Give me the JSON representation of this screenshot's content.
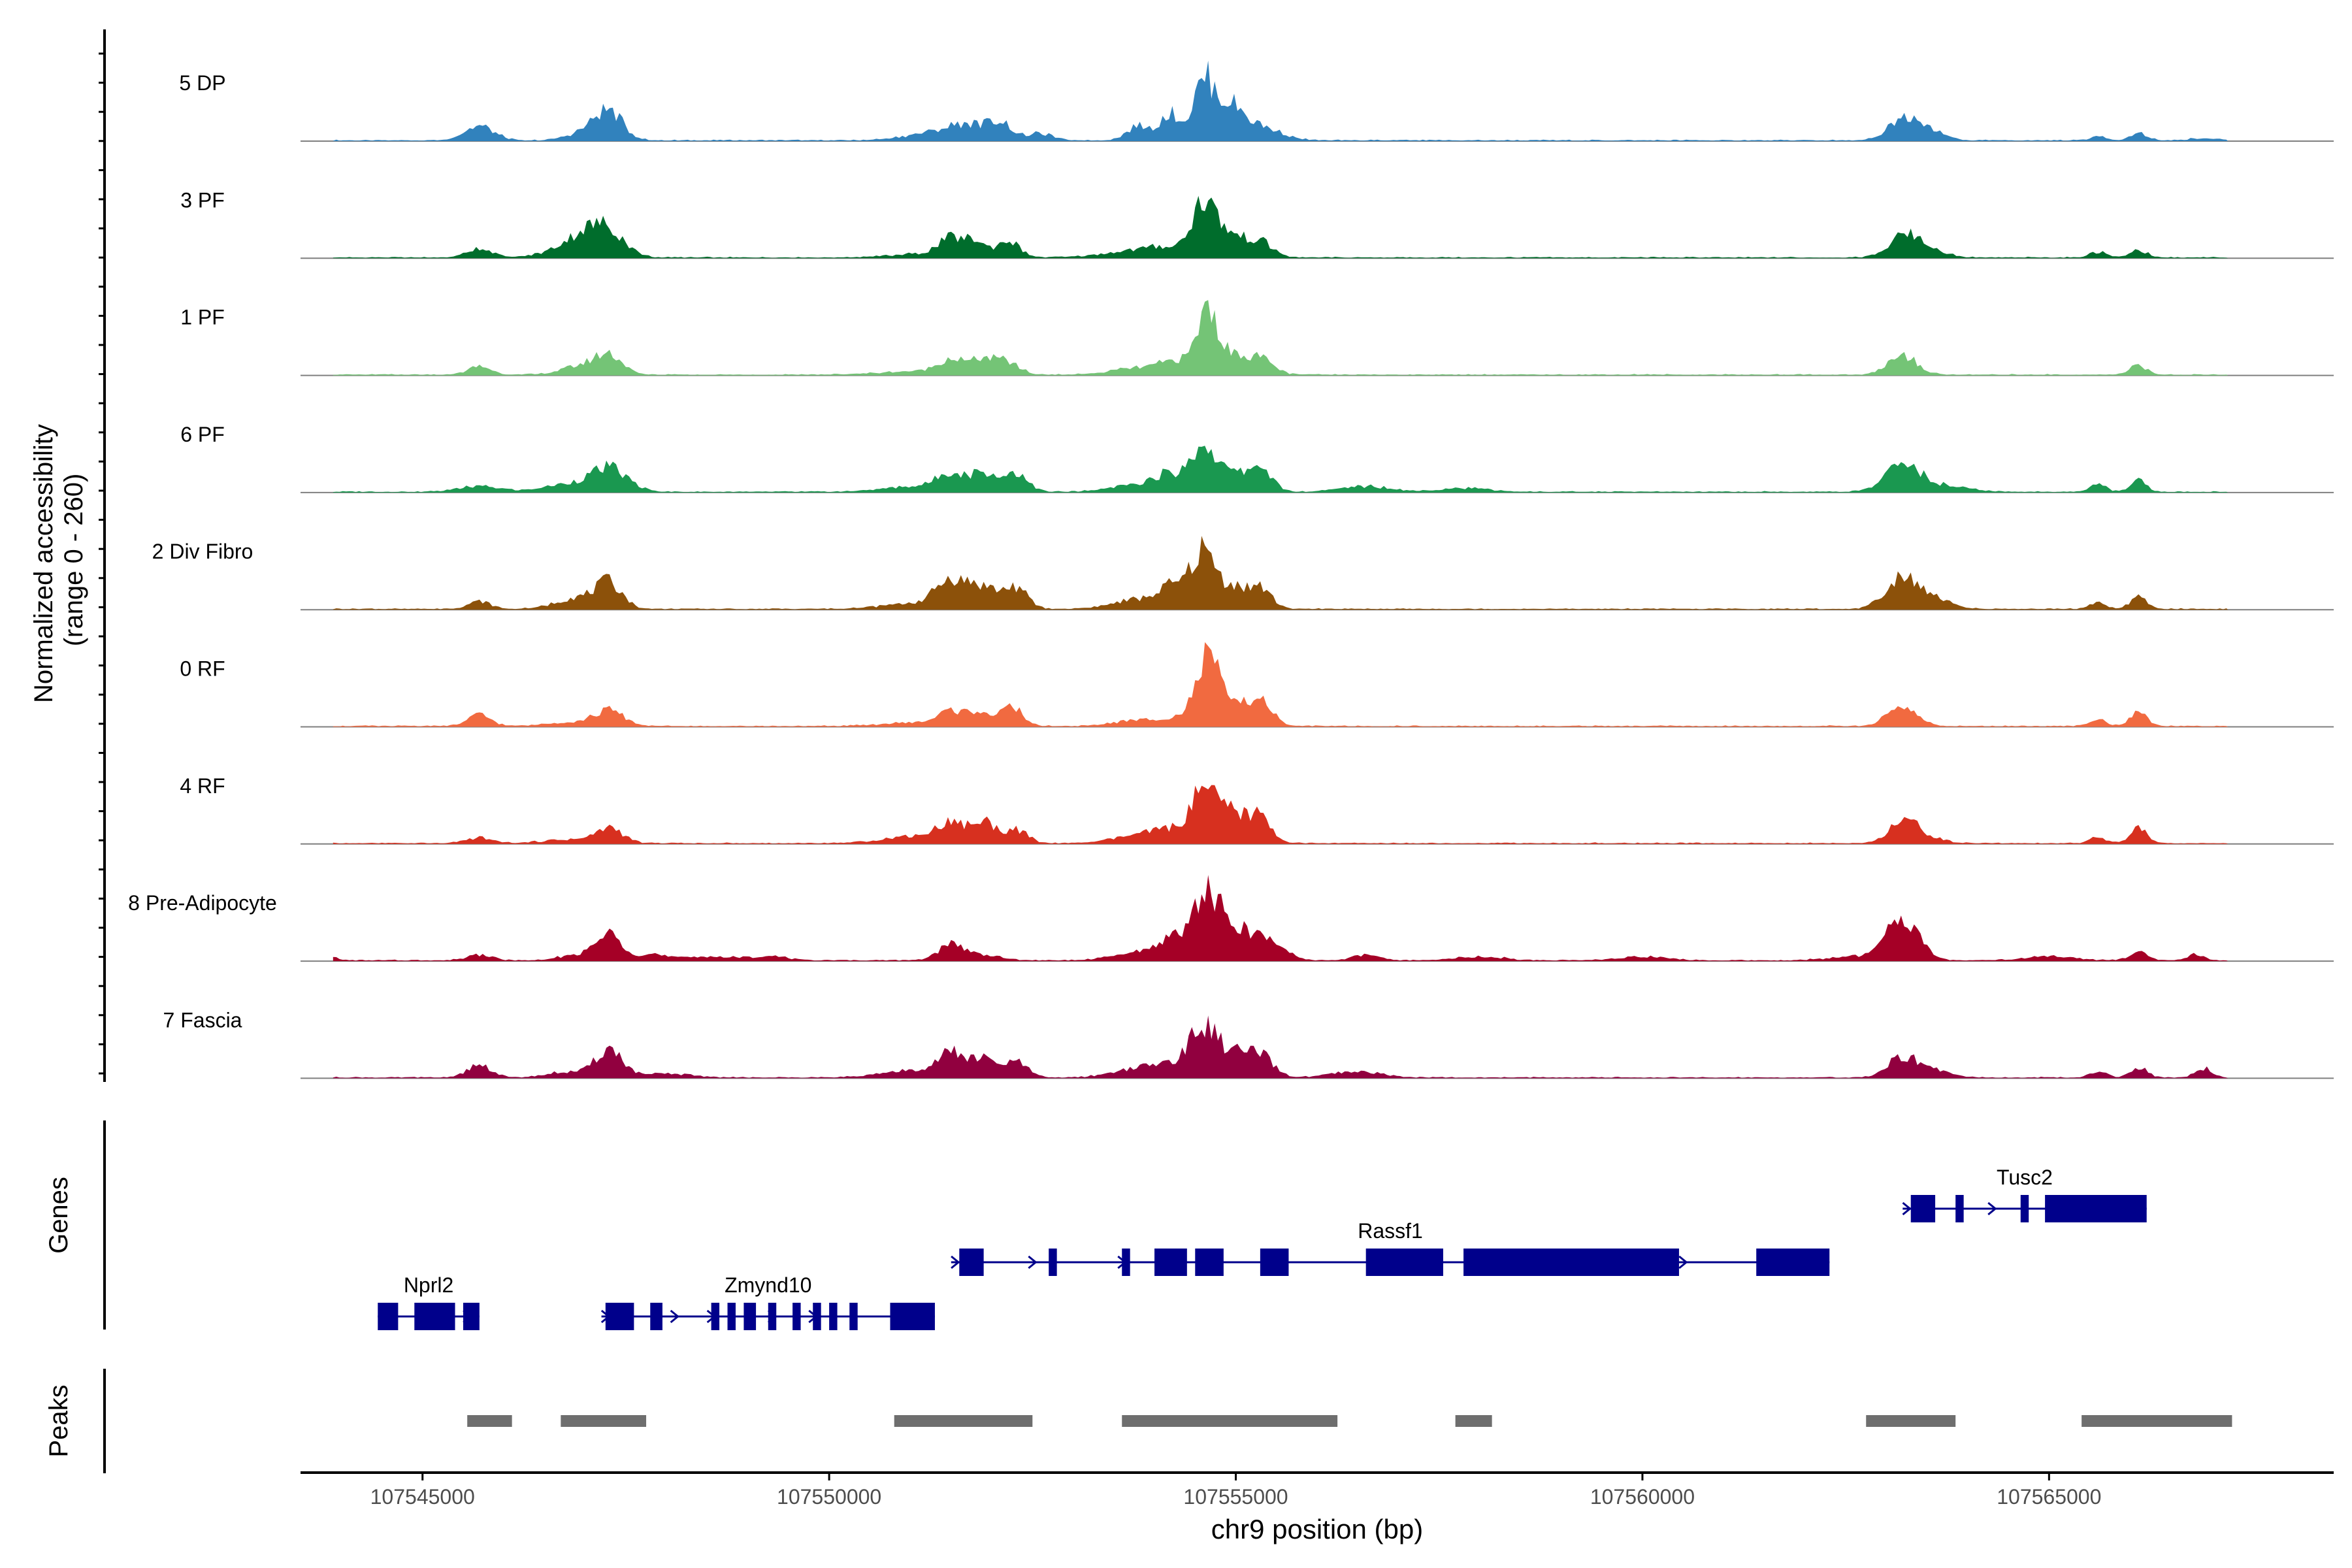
{
  "chart_data": {
    "type": "area",
    "title": "",
    "xlabel": "chr9 position (bp)",
    "ylabel": "Normalized accessibility (range 0 - 260)",
    "ylabel_lines": [
      "Normalized accessibility",
      "(range 0 - 260)"
    ],
    "y_range": [
      0,
      260
    ],
    "xlim": [
      107543500,
      107568500
    ],
    "x_ticks": [
      107545000,
      107550000,
      107555000,
      107560000,
      107565000
    ],
    "x_tick_labels": [
      "107545000",
      "107550000",
      "107555000",
      "107560000",
      "107565000"
    ],
    "panel_labels": {
      "genes": "Genes",
      "peaks": "Peaks"
    },
    "tracks": [
      {
        "name": "5 DP",
        "color": "#3182BD",
        "peaks": [
          [
            107545700,
            38,
            180
          ],
          [
            107547300,
            60,
            160
          ],
          [
            107547100,
            30,
            250
          ],
          [
            107551300,
            20,
            350
          ],
          [
            107551700,
            34,
            220
          ],
          [
            107552100,
            45,
            150
          ],
          [
            107552600,
            18,
            150
          ],
          [
            107553800,
            38,
            140
          ],
          [
            107554200,
            72,
            130
          ],
          [
            107554600,
            145,
            120
          ],
          [
            107554900,
            90,
            180
          ],
          [
            107555300,
            35,
            250
          ],
          [
            107563200,
            55,
            180
          ],
          [
            107563500,
            30,
            180
          ],
          [
            107565600,
            10,
            100
          ],
          [
            107566100,
            20,
            100
          ],
          [
            107566900,
            5,
            200
          ]
        ]
      },
      {
        "name": "3 PF",
        "color": "#006D2C",
        "peaks": [
          [
            107545700,
            25,
            150
          ],
          [
            107546700,
            10,
            300
          ],
          [
            107547000,
            55,
            250
          ],
          [
            107547300,
            55,
            200
          ],
          [
            107551200,
            10,
            400
          ],
          [
            107551500,
            45,
            150
          ],
          [
            107551800,
            38,
            120
          ],
          [
            107552200,
            45,
            140
          ],
          [
            107553800,
            18,
            400
          ],
          [
            107554200,
            18,
            250
          ],
          [
            107554600,
            130,
            140
          ],
          [
            107554900,
            60,
            200
          ],
          [
            107555300,
            38,
            160
          ],
          [
            107563200,
            55,
            180
          ],
          [
            107563500,
            25,
            200
          ],
          [
            107565600,
            15,
            100
          ],
          [
            107566100,
            20,
            100
          ]
        ]
      },
      {
        "name": "1 PF",
        "color": "#74C476",
        "peaks": [
          [
            107545700,
            22,
            140
          ],
          [
            107547000,
            25,
            250
          ],
          [
            107547300,
            45,
            160
          ],
          [
            107551200,
            10,
            500
          ],
          [
            107551500,
            35,
            150
          ],
          [
            107551900,
            38,
            150
          ],
          [
            107552200,
            30,
            140
          ],
          [
            107553800,
            18,
            300
          ],
          [
            107554300,
            35,
            200
          ],
          [
            107554650,
            160,
            120
          ],
          [
            107554950,
            50,
            180
          ],
          [
            107555300,
            40,
            160
          ],
          [
            107563200,
            50,
            180
          ],
          [
            107566100,
            25,
            100
          ]
        ]
      },
      {
        "name": "6 PF",
        "color": "#1A9850",
        "peaks": [
          [
            107545700,
            15,
            250
          ],
          [
            107546800,
            20,
            300
          ],
          [
            107547300,
            60,
            220
          ],
          [
            107551100,
            15,
            400
          ],
          [
            107551500,
            45,
            160
          ],
          [
            107551900,
            50,
            150
          ],
          [
            107552300,
            52,
            140
          ],
          [
            107553800,
            20,
            300
          ],
          [
            107554200,
            40,
            180
          ],
          [
            107554600,
            118,
            150
          ],
          [
            107554950,
            45,
            180
          ],
          [
            107555300,
            65,
            140
          ],
          [
            107556600,
            15,
            300
          ],
          [
            107557800,
            10,
            300
          ],
          [
            107563200,
            70,
            220
          ],
          [
            107563700,
            15,
            300
          ],
          [
            107565600,
            20,
            100
          ],
          [
            107566100,
            30,
            100
          ]
        ]
      },
      {
        "name": "2 Div Fibro",
        "color": "#8C510A",
        "peaks": [
          [
            107545700,
            20,
            140
          ],
          [
            107546900,
            30,
            250
          ],
          [
            107547300,
            65,
            160
          ],
          [
            107551100,
            15,
            400
          ],
          [
            107551500,
            70,
            180
          ],
          [
            107551900,
            55,
            180
          ],
          [
            107552300,
            55,
            140
          ],
          [
            107553800,
            25,
            300
          ],
          [
            107554250,
            55,
            180
          ],
          [
            107554600,
            145,
            140
          ],
          [
            107554950,
            60,
            160
          ],
          [
            107555300,
            55,
            140
          ],
          [
            107563200,
            90,
            200
          ],
          [
            107563600,
            25,
            200
          ],
          [
            107565600,
            15,
            100
          ],
          [
            107566100,
            30,
            100
          ]
        ]
      },
      {
        "name": "0 RF",
        "color": "#F16A40",
        "peaks": [
          [
            107545700,
            30,
            140
          ],
          [
            107546800,
            10,
            300
          ],
          [
            107547300,
            40,
            180
          ],
          [
            107551100,
            10,
            400
          ],
          [
            107551500,
            35,
            150
          ],
          [
            107551850,
            38,
            140
          ],
          [
            107552250,
            50,
            130
          ],
          [
            107553800,
            15,
            300
          ],
          [
            107554300,
            20,
            200
          ],
          [
            107554650,
            165,
            140
          ],
          [
            107554950,
            50,
            180
          ],
          [
            107555300,
            70,
            140
          ],
          [
            107563200,
            55,
            180
          ],
          [
            107565600,
            20,
            100
          ],
          [
            107566100,
            35,
            100
          ]
        ]
      },
      {
        "name": "4 RF",
        "color": "#D7301F",
        "peaks": [
          [
            107545700,
            15,
            150
          ],
          [
            107546800,
            10,
            300
          ],
          [
            107547300,
            40,
            160
          ],
          [
            107551100,
            20,
            400
          ],
          [
            107551500,
            45,
            160
          ],
          [
            107551900,
            55,
            150
          ],
          [
            107552300,
            35,
            140
          ],
          [
            107553800,
            20,
            300
          ],
          [
            107554200,
            30,
            200
          ],
          [
            107554600,
            135,
            150
          ],
          [
            107554950,
            80,
            160
          ],
          [
            107555300,
            70,
            140
          ],
          [
            107563200,
            55,
            180
          ],
          [
            107563500,
            15,
            200
          ],
          [
            107565600,
            15,
            100
          ],
          [
            107566100,
            40,
            100
          ]
        ]
      },
      {
        "name": "8 Pre-Adipocyte",
        "color": "#A50026",
        "peaks": [
          [
            107543900,
            10,
            60
          ],
          [
            107545700,
            15,
            150
          ],
          [
            107546900,
            15,
            200
          ],
          [
            107547300,
            68,
            160
          ],
          [
            107547800,
            15,
            150
          ],
          [
            107548500,
            10,
            400
          ],
          [
            107549300,
            10,
            200
          ],
          [
            107551500,
            45,
            150
          ],
          [
            107551900,
            15,
            200
          ],
          [
            107553800,
            20,
            300
          ],
          [
            107554250,
            55,
            200
          ],
          [
            107554650,
            165,
            160
          ],
          [
            107555000,
            70,
            200
          ],
          [
            107555400,
            50,
            200
          ],
          [
            107556600,
            15,
            150
          ],
          [
            107558000,
            10,
            300
          ],
          [
            107560000,
            10,
            300
          ],
          [
            107562600,
            10,
            300
          ],
          [
            107563200,
            110,
            200
          ],
          [
            107565000,
            10,
            300
          ],
          [
            107566100,
            25,
            100
          ],
          [
            107566800,
            15,
            100
          ]
        ]
      },
      {
        "name": "7 Fascia",
        "color": "#91003F",
        "peaks": [
          [
            107545700,
            35,
            140
          ],
          [
            107546800,
            15,
            250
          ],
          [
            107547300,
            75,
            160
          ],
          [
            107548000,
            10,
            300
          ],
          [
            107551100,
            20,
            400
          ],
          [
            107551500,
            55,
            160
          ],
          [
            107551900,
            45,
            160
          ],
          [
            107552300,
            40,
            140
          ],
          [
            107553800,
            25,
            300
          ],
          [
            107554250,
            30,
            200
          ],
          [
            107554600,
            125,
            160
          ],
          [
            107554950,
            60,
            180
          ],
          [
            107555300,
            55,
            160
          ],
          [
            107556500,
            15,
            300
          ],
          [
            107563200,
            55,
            180
          ],
          [
            107563600,
            20,
            200
          ],
          [
            107565600,
            18,
            100
          ],
          [
            107566100,
            28,
            100
          ],
          [
            107566900,
            25,
            100
          ]
        ]
      }
    ],
    "genes": [
      {
        "name": "Nprl2",
        "start": 107544450,
        "end": 107545700,
        "row": 0,
        "arrows": [
          107544550,
          107545550
        ],
        "exons": [
          [
            107544450,
            107544700
          ],
          [
            107544900,
            107545400
          ],
          [
            107545500,
            107545700
          ]
        ]
      },
      {
        "name": "Zmynd10",
        "start": 107547200,
        "end": 107551300,
        "row": 0,
        "arrows": [
          107547250,
          107548100,
          107548550,
          107549300,
          107549800
        ],
        "exons": [
          [
            107547250,
            107547600
          ],
          [
            107547800,
            107547950
          ],
          [
            107548550,
            107548650
          ],
          [
            107548750,
            107548850
          ],
          [
            107548950,
            107549100
          ],
          [
            107549250,
            107549350
          ],
          [
            107549550,
            107549650
          ],
          [
            107549800,
            107549900
          ],
          [
            107550000,
            107550100
          ],
          [
            107550250,
            107550350
          ],
          [
            107550750,
            107551300
          ]
        ]
      },
      {
        "name": "Rassf1",
        "start": 107551500,
        "end": 107562300,
        "row": 1,
        "arrows": [
          107551550,
          107552500,
          107553600,
          107560500
        ],
        "exons": [
          [
            107551600,
            107551900
          ],
          [
            107552700,
            107552800
          ],
          [
            107553600,
            107553700
          ],
          [
            107554000,
            107554400
          ],
          [
            107554500,
            107554850
          ],
          [
            107555300,
            107555650
          ],
          [
            107556600,
            107557550
          ],
          [
            107557800,
            107560450
          ],
          [
            107561400,
            107562300
          ]
        ]
      },
      {
        "name": "Tusc2",
        "start": 107563200,
        "end": 107566200,
        "row": 2,
        "arrows": [
          107563250,
          107564300
        ],
        "exons": [
          [
            107563300,
            107563600
          ],
          [
            107563850,
            107563950
          ],
          [
            107564650,
            107564750
          ],
          [
            107564950,
            107566200
          ]
        ]
      }
    ],
    "peaks": [
      {
        "start": 107545550,
        "end": 107546100
      },
      {
        "start": 107546700,
        "end": 107547750
      },
      {
        "start": 107550800,
        "end": 107552500
      },
      {
        "start": 107553600,
        "end": 107556250
      },
      {
        "start": 107557700,
        "end": 107558150
      },
      {
        "start": 107562750,
        "end": 107563850
      },
      {
        "start": 107565400,
        "end": 107567250
      }
    ]
  }
}
